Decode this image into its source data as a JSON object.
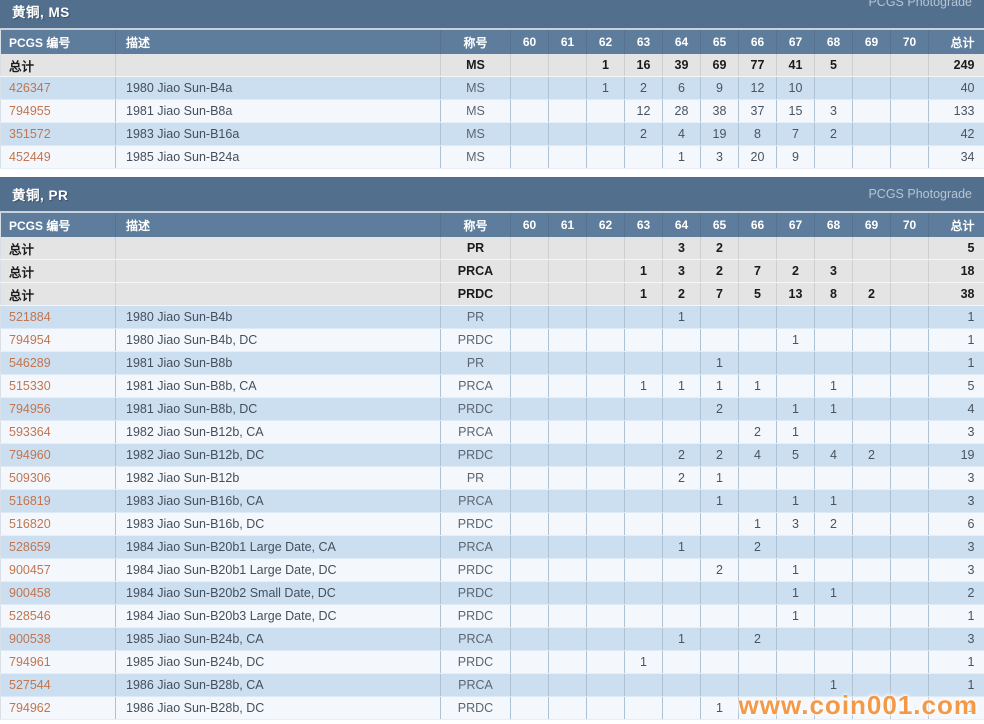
{
  "watermark": "www.coin001.com",
  "columns": {
    "pcgs": "PCGS 编号",
    "desc": "描述",
    "designation": "称号",
    "grades": [
      "60",
      "61",
      "62",
      "63",
      "64",
      "65",
      "66",
      "67",
      "68",
      "69",
      "70"
    ],
    "total": "总计"
  },
  "sections": [
    {
      "title": "黄铜, MS",
      "photograde": "PCGS Photograde",
      "totals": [
        {
          "label": "总计",
          "designation": "MS",
          "grades": [
            "",
            "",
            "1",
            "16",
            "39",
            "69",
            "77",
            "41",
            "5",
            "",
            ""
          ],
          "total": "249"
        }
      ],
      "rows": [
        {
          "pcgs": "426347",
          "desc": "1980 Jiao Sun-B4a",
          "designation": "MS",
          "grades": [
            "",
            "",
            "1",
            "2",
            "6",
            "9",
            "12",
            "10",
            "",
            "",
            ""
          ],
          "total": "40"
        },
        {
          "pcgs": "794955",
          "desc": "1981 Jiao Sun-B8a",
          "designation": "MS",
          "grades": [
            "",
            "",
            "",
            "12",
            "28",
            "38",
            "37",
            "15",
            "3",
            "",
            ""
          ],
          "total": "133"
        },
        {
          "pcgs": "351572",
          "desc": "1983 Jiao Sun-B16a",
          "designation": "MS",
          "grades": [
            "",
            "",
            "",
            "2",
            "4",
            "19",
            "8",
            "7",
            "2",
            "",
            ""
          ],
          "total": "42"
        },
        {
          "pcgs": "452449",
          "desc": "1985 Jiao Sun-B24a",
          "designation": "MS",
          "grades": [
            "",
            "",
            "",
            "",
            "1",
            "3",
            "20",
            "9",
            "",
            "",
            ""
          ],
          "total": "34"
        }
      ]
    },
    {
      "title": "黄铜, PR",
      "photograde": "PCGS Photograde",
      "totals": [
        {
          "label": "总计",
          "designation": "PR",
          "grades": [
            "",
            "",
            "",
            "",
            "3",
            "2",
            "",
            "",
            "",
            "",
            ""
          ],
          "total": "5"
        },
        {
          "label": "总计",
          "designation": "PRCA",
          "grades": [
            "",
            "",
            "",
            "1",
            "3",
            "2",
            "7",
            "2",
            "3",
            "",
            ""
          ],
          "total": "18"
        },
        {
          "label": "总计",
          "designation": "PRDC",
          "grades": [
            "",
            "",
            "",
            "1",
            "2",
            "7",
            "5",
            "13",
            "8",
            "2",
            ""
          ],
          "total": "38"
        }
      ],
      "rows": [
        {
          "pcgs": "521884",
          "desc": "1980 Jiao Sun-B4b",
          "designation": "PR",
          "grades": [
            "",
            "",
            "",
            "",
            "1",
            "",
            "",
            "",
            "",
            "",
            ""
          ],
          "total": "1"
        },
        {
          "pcgs": "794954",
          "desc": "1980 Jiao Sun-B4b, DC",
          "designation": "PRDC",
          "grades": [
            "",
            "",
            "",
            "",
            "",
            "",
            "",
            "1",
            "",
            "",
            ""
          ],
          "total": "1"
        },
        {
          "pcgs": "546289",
          "desc": "1981 Jiao Sun-B8b",
          "designation": "PR",
          "grades": [
            "",
            "",
            "",
            "",
            "",
            "1",
            "",
            "",
            "",
            "",
            ""
          ],
          "total": "1"
        },
        {
          "pcgs": "515330",
          "desc": "1981 Jiao Sun-B8b, CA",
          "designation": "PRCA",
          "grades": [
            "",
            "",
            "",
            "1",
            "1",
            "1",
            "1",
            "",
            "1",
            "",
            ""
          ],
          "total": "5"
        },
        {
          "pcgs": "794956",
          "desc": "1981 Jiao Sun-B8b, DC",
          "designation": "PRDC",
          "grades": [
            "",
            "",
            "",
            "",
            "",
            "2",
            "",
            "1",
            "1",
            "",
            ""
          ],
          "total": "4"
        },
        {
          "pcgs": "593364",
          "desc": "1982 Jiao Sun-B12b, CA",
          "designation": "PRCA",
          "grades": [
            "",
            "",
            "",
            "",
            "",
            "",
            "2",
            "1",
            "",
            "",
            ""
          ],
          "total": "3"
        },
        {
          "pcgs": "794960",
          "desc": "1982 Jiao Sun-B12b, DC",
          "designation": "PRDC",
          "grades": [
            "",
            "",
            "",
            "",
            "2",
            "2",
            "4",
            "5",
            "4",
            "2",
            ""
          ],
          "total": "19"
        },
        {
          "pcgs": "509306",
          "desc": "1982 Jiao Sun-B12b",
          "designation": "PR",
          "grades": [
            "",
            "",
            "",
            "",
            "2",
            "1",
            "",
            "",
            "",
            "",
            ""
          ],
          "total": "3"
        },
        {
          "pcgs": "516819",
          "desc": "1983 Jiao Sun-B16b, CA",
          "designation": "PRCA",
          "grades": [
            "",
            "",
            "",
            "",
            "",
            "1",
            "",
            "1",
            "1",
            "",
            ""
          ],
          "total": "3"
        },
        {
          "pcgs": "516820",
          "desc": "1983 Jiao Sun-B16b, DC",
          "designation": "PRDC",
          "grades": [
            "",
            "",
            "",
            "",
            "",
            "",
            "1",
            "3",
            "2",
            "",
            ""
          ],
          "total": "6"
        },
        {
          "pcgs": "528659",
          "desc": "1984 Jiao Sun-B20b1 Large Date, CA",
          "designation": "PRCA",
          "grades": [
            "",
            "",
            "",
            "",
            "1",
            "",
            "2",
            "",
            "",
            "",
            ""
          ],
          "total": "3"
        },
        {
          "pcgs": "900457",
          "desc": "1984 Jiao Sun-B20b1 Large Date, DC",
          "designation": "PRDC",
          "grades": [
            "",
            "",
            "",
            "",
            "",
            "2",
            "",
            "1",
            "",
            "",
            ""
          ],
          "total": "3"
        },
        {
          "pcgs": "900458",
          "desc": "1984 Jiao Sun-B20b2 Small Date, DC",
          "designation": "PRDC",
          "grades": [
            "",
            "",
            "",
            "",
            "",
            "",
            "",
            "1",
            "1",
            "",
            ""
          ],
          "total": "2"
        },
        {
          "pcgs": "528546",
          "desc": "1984 Jiao Sun-B20b3 Large Date, DC",
          "designation": "PRDC",
          "grades": [
            "",
            "",
            "",
            "",
            "",
            "",
            "",
            "1",
            "",
            "",
            ""
          ],
          "total": "1"
        },
        {
          "pcgs": "900538",
          "desc": "1985 Jiao Sun-B24b, CA",
          "designation": "PRCA",
          "grades": [
            "",
            "",
            "",
            "",
            "1",
            "",
            "2",
            "",
            "",
            "",
            ""
          ],
          "total": "3"
        },
        {
          "pcgs": "794961",
          "desc": "1985 Jiao Sun-B24b, DC",
          "designation": "PRDC",
          "grades": [
            "",
            "",
            "",
            "1",
            "",
            "",
            "",
            "",
            "",
            "",
            ""
          ],
          "total": "1"
        },
        {
          "pcgs": "527544",
          "desc": "1986 Jiao Sun-B28b, CA",
          "designation": "PRCA",
          "grades": [
            "",
            "",
            "",
            "",
            "",
            "",
            "",
            "",
            "1",
            "",
            ""
          ],
          "total": "1"
        },
        {
          "pcgs": "794962",
          "desc": "1986 Jiao Sun-B28b, DC",
          "designation": "PRDC",
          "grades": [
            "",
            "",
            "",
            "",
            "",
            "1",
            "",
            "",
            "",
            "",
            ""
          ],
          "total": "1"
        }
      ]
    }
  ]
}
